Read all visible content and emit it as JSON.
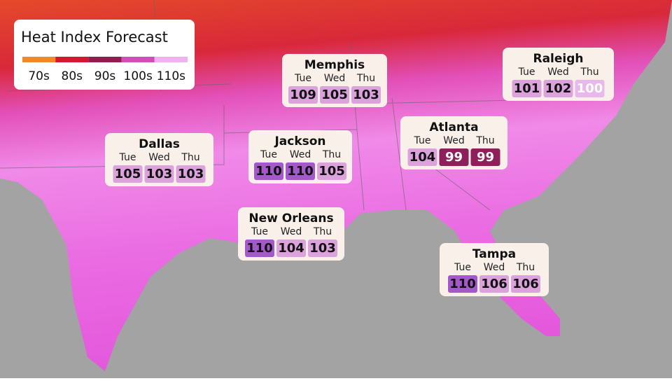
{
  "title": "Heat Index Forecast",
  "legend": [
    {
      "label": "70s",
      "color": "#ee8a2c"
    },
    {
      "label": "80s",
      "color": "#d8152e"
    },
    {
      "label": "90s",
      "color": "#8e1f4e"
    },
    {
      "label": "100s",
      "color": "#cf4fb8"
    },
    {
      "label": "110s",
      "color": "#f0b2ef"
    }
  ],
  "cities": [
    {
      "name": "Memphis",
      "cells": [
        {
          "day": "Tue",
          "value": 109,
          "color": "#dba2dc",
          "text_color": "#111"
        },
        {
          "day": "Wed",
          "value": 105,
          "color": "#dba2dc",
          "text_color": "#111"
        },
        {
          "day": "Thu",
          "value": 103,
          "color": "#dba2dc",
          "text_color": "#111"
        }
      ]
    },
    {
      "name": "Raleigh",
      "cells": [
        {
          "day": "Tue",
          "value": 101,
          "color": "#dba2dc",
          "text_color": "#111"
        },
        {
          "day": "Wed",
          "value": 102,
          "color": "#dba2dc",
          "text_color": "#111"
        },
        {
          "day": "Thu",
          "value": 100,
          "color": "#e8b8ea",
          "text_color": "#ffffff"
        }
      ]
    },
    {
      "name": "Dallas",
      "cells": [
        {
          "day": "Tue",
          "value": 105,
          "color": "#dba2dc",
          "text_color": "#111"
        },
        {
          "day": "Wed",
          "value": 103,
          "color": "#dba2dc",
          "text_color": "#111"
        },
        {
          "day": "Thu",
          "value": 103,
          "color": "#dba2dc",
          "text_color": "#111"
        }
      ]
    },
    {
      "name": "Jackson",
      "cells": [
        {
          "day": "Tue",
          "value": 110,
          "color": "#a359c9",
          "text_color": "#111"
        },
        {
          "day": "Wed",
          "value": 110,
          "color": "#a359c9",
          "text_color": "#111"
        },
        {
          "day": "Thu",
          "value": 105,
          "color": "#dba2dc",
          "text_color": "#111"
        }
      ]
    },
    {
      "name": "Atlanta",
      "cells": [
        {
          "day": "Tue",
          "value": 104,
          "color": "#dba2dc",
          "text_color": "#111"
        },
        {
          "day": "Wed",
          "value": 99,
          "color": "#8e1f5a",
          "text_color": "#ffffff"
        },
        {
          "day": "Thu",
          "value": 99,
          "color": "#8e1f5a",
          "text_color": "#ffffff"
        }
      ]
    },
    {
      "name": "New Orleans",
      "cells": [
        {
          "day": "Tue",
          "value": 110,
          "color": "#a359c9",
          "text_color": "#111"
        },
        {
          "day": "Wed",
          "value": 104,
          "color": "#dba2dc",
          "text_color": "#111"
        },
        {
          "day": "Thu",
          "value": 103,
          "color": "#dba2dc",
          "text_color": "#111"
        }
      ]
    },
    {
      "name": "Tampa",
      "cells": [
        {
          "day": "Tue",
          "value": 110,
          "color": "#a359c9",
          "text_color": "#111"
        },
        {
          "day": "Wed",
          "value": 106,
          "color": "#dba2dc",
          "text_color": "#111"
        },
        {
          "day": "Thu",
          "value": 106,
          "color": "#dba2dc",
          "text_color": "#111"
        }
      ]
    }
  ]
}
